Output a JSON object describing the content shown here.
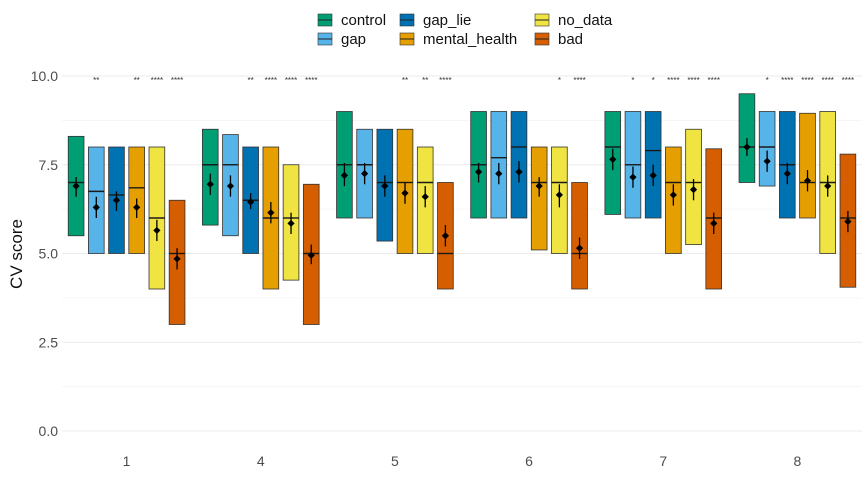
{
  "chart_data": {
    "type": "box",
    "ylabel": "CV score",
    "xlabel": "",
    "ylim": [
      0,
      10
    ],
    "y_ticks": [
      "0.0",
      "2.5",
      "5.0",
      "7.5",
      "10.0"
    ],
    "grid": true,
    "legend_position": "top",
    "series": [
      {
        "name": "control",
        "color": "#009E73"
      },
      {
        "name": "gap",
        "color": "#56B4E9"
      },
      {
        "name": "gap_lie",
        "color": "#0072B2"
      },
      {
        "name": "mental_health",
        "color": "#E69F00"
      },
      {
        "name": "no_data",
        "color": "#F0E442"
      },
      {
        "name": "bad",
        "color": "#D55E00"
      }
    ],
    "legend_order": [
      "control",
      "gap_lie",
      "no_data",
      "gap",
      "mental_health",
      "bad"
    ],
    "panels": [
      {
        "label": "1",
        "boxes": [
          {
            "series": "control",
            "lower": 5.5,
            "upper": 8.3,
            "median": 7.0,
            "mean": 6.9,
            "ci": [
              6.6,
              7.15
            ],
            "sig": ""
          },
          {
            "series": "gap",
            "lower": 5.0,
            "upper": 8.0,
            "median": 6.75,
            "mean": 6.3,
            "ci": [
              6.0,
              6.6
            ],
            "sig": "**"
          },
          {
            "series": "gap_lie",
            "lower": 5.0,
            "upper": 8.0,
            "median": 6.65,
            "mean": 6.5,
            "ci": [
              6.2,
              6.75
            ],
            "sig": ""
          },
          {
            "series": "mental_health",
            "lower": 5.0,
            "upper": 8.0,
            "median": 6.85,
            "mean": 6.3,
            "ci": [
              6.0,
              6.55
            ],
            "sig": "**"
          },
          {
            "series": "no_data",
            "lower": 4.0,
            "upper": 8.0,
            "median": 6.0,
            "mean": 5.65,
            "ci": [
              5.35,
              5.95
            ],
            "sig": "****"
          },
          {
            "series": "bad",
            "lower": 3.0,
            "upper": 6.5,
            "median": 5.0,
            "mean": 4.85,
            "ci": [
              4.55,
              5.15
            ],
            "sig": "****"
          }
        ]
      },
      {
        "label": "4",
        "boxes": [
          {
            "series": "control",
            "lower": 5.8,
            "upper": 8.5,
            "median": 7.5,
            "mean": 6.95,
            "ci": [
              6.65,
              7.25
            ],
            "sig": ""
          },
          {
            "series": "gap",
            "lower": 5.5,
            "upper": 8.35,
            "median": 7.5,
            "mean": 6.9,
            "ci": [
              6.6,
              7.2
            ],
            "sig": ""
          },
          {
            "series": "gap_lie",
            "lower": 5.0,
            "upper": 8.0,
            "median": 6.5,
            "mean": 6.45,
            "ci": [
              6.25,
              6.7
            ],
            "sig": "**"
          },
          {
            "series": "mental_health",
            "lower": 4.0,
            "upper": 8.0,
            "median": 6.0,
            "mean": 6.15,
            "ci": [
              5.85,
              6.45
            ],
            "sig": "****"
          },
          {
            "series": "no_data",
            "lower": 4.25,
            "upper": 7.5,
            "median": 6.0,
            "mean": 5.85,
            "ci": [
              5.55,
              6.15
            ],
            "sig": "****"
          },
          {
            "series": "bad",
            "lower": 3.0,
            "upper": 6.95,
            "median": 5.0,
            "mean": 4.95,
            "ci": [
              4.7,
              5.25
            ],
            "sig": "****"
          }
        ]
      },
      {
        "label": "5",
        "boxes": [
          {
            "series": "control",
            "lower": 6.0,
            "upper": 9.0,
            "median": 7.5,
            "mean": 7.2,
            "ci": [
              6.9,
              7.55
            ],
            "sig": ""
          },
          {
            "series": "gap",
            "lower": 6.0,
            "upper": 8.5,
            "median": 7.5,
            "mean": 7.25,
            "ci": [
              6.95,
              7.55
            ],
            "sig": ""
          },
          {
            "series": "gap_lie",
            "lower": 5.35,
            "upper": 8.5,
            "median": 7.0,
            "mean": 6.9,
            "ci": [
              6.6,
              7.2
            ],
            "sig": ""
          },
          {
            "series": "mental_health",
            "lower": 5.0,
            "upper": 8.5,
            "median": 7.0,
            "mean": 6.7,
            "ci": [
              6.4,
              7.0
            ],
            "sig": "**"
          },
          {
            "series": "no_data",
            "lower": 5.0,
            "upper": 8.0,
            "median": 7.0,
            "mean": 6.6,
            "ci": [
              6.3,
              6.9
            ],
            "sig": "**"
          },
          {
            "series": "bad",
            "lower": 4.0,
            "upper": 7.0,
            "median": 5.0,
            "mean": 5.5,
            "ci": [
              5.2,
              5.8
            ],
            "sig": "****"
          }
        ]
      },
      {
        "label": "6",
        "boxes": [
          {
            "series": "control",
            "lower": 6.0,
            "upper": 9.0,
            "median": 7.5,
            "mean": 7.3,
            "ci": [
              7.0,
              7.55
            ],
            "sig": ""
          },
          {
            "series": "gap",
            "lower": 6.0,
            "upper": 9.0,
            "median": 7.7,
            "mean": 7.25,
            "ci": [
              6.95,
              7.55
            ],
            "sig": ""
          },
          {
            "series": "gap_lie",
            "lower": 6.0,
            "upper": 9.0,
            "median": 8.0,
            "mean": 7.3,
            "ci": [
              7.0,
              7.6
            ],
            "sig": ""
          },
          {
            "series": "mental_health",
            "lower": 5.1,
            "upper": 8.0,
            "median": 7.0,
            "mean": 6.9,
            "ci": [
              6.6,
              7.15
            ],
            "sig": ""
          },
          {
            "series": "no_data",
            "lower": 5.0,
            "upper": 8.0,
            "median": 7.0,
            "mean": 6.65,
            "ci": [
              6.3,
              6.95
            ],
            "sig": "*"
          },
          {
            "series": "bad",
            "lower": 4.0,
            "upper": 7.0,
            "median": 5.0,
            "mean": 5.15,
            "ci": [
              4.85,
              5.45
            ],
            "sig": "****"
          }
        ]
      },
      {
        "label": "7",
        "boxes": [
          {
            "series": "control",
            "lower": 6.1,
            "upper": 9.0,
            "median": 8.0,
            "mean": 7.65,
            "ci": [
              7.35,
              7.95
            ],
            "sig": ""
          },
          {
            "series": "gap",
            "lower": 6.0,
            "upper": 9.0,
            "median": 7.5,
            "mean": 7.15,
            "ci": [
              6.85,
              7.45
            ],
            "sig": "*"
          },
          {
            "series": "gap_lie",
            "lower": 6.0,
            "upper": 9.0,
            "median": 7.9,
            "mean": 7.2,
            "ci": [
              6.9,
              7.5
            ],
            "sig": "*"
          },
          {
            "series": "mental_health",
            "lower": 5.0,
            "upper": 8.0,
            "median": 7.0,
            "mean": 6.65,
            "ci": [
              6.35,
              6.95
            ],
            "sig": "****"
          },
          {
            "series": "no_data",
            "lower": 5.25,
            "upper": 8.5,
            "median": 7.0,
            "mean": 6.8,
            "ci": [
              6.5,
              7.1
            ],
            "sig": "****"
          },
          {
            "series": "bad",
            "lower": 4.0,
            "upper": 7.95,
            "median": 6.0,
            "mean": 5.85,
            "ci": [
              5.55,
              6.15
            ],
            "sig": "****"
          }
        ]
      },
      {
        "label": "8",
        "boxes": [
          {
            "series": "control",
            "lower": 7.0,
            "upper": 9.5,
            "median": 8.0,
            "mean": 8.0,
            "ci": [
              7.75,
              8.25
            ],
            "sig": ""
          },
          {
            "series": "gap",
            "lower": 6.9,
            "upper": 9.0,
            "median": 8.0,
            "mean": 7.6,
            "ci": [
              7.3,
              7.9
            ],
            "sig": "*"
          },
          {
            "series": "gap_lie",
            "lower": 6.0,
            "upper": 9.0,
            "median": 7.5,
            "mean": 7.25,
            "ci": [
              6.95,
              7.55
            ],
            "sig": "****"
          },
          {
            "series": "mental_health",
            "lower": 6.0,
            "upper": 8.95,
            "median": 7.0,
            "mean": 7.05,
            "ci": [
              6.75,
              7.35
            ],
            "sig": "****"
          },
          {
            "series": "no_data",
            "lower": 5.0,
            "upper": 9.0,
            "median": 7.0,
            "mean": 6.9,
            "ci": [
              6.6,
              7.2
            ],
            "sig": "****"
          },
          {
            "series": "bad",
            "lower": 4.05,
            "upper": 7.8,
            "median": 6.0,
            "mean": 5.9,
            "ci": [
              5.6,
              6.2
            ],
            "sig": "****"
          }
        ]
      }
    ]
  }
}
